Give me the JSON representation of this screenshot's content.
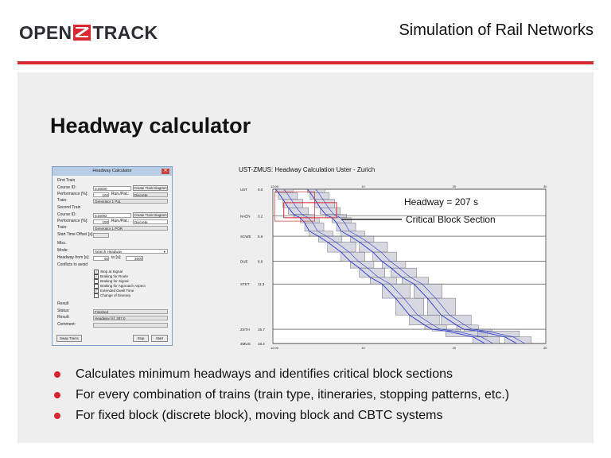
{
  "header": {
    "logo_left": "OPEN",
    "logo_right": "TRACK",
    "title": "Simulation of Rail Networks",
    "accent_color": "#d9282f"
  },
  "slide": {
    "title": "Headway calculator"
  },
  "dialog": {
    "title": "Headway Calculator",
    "first_train_label": "First Train",
    "course_id_label": "Course ID:",
    "course_id_1": "S16000",
    "create_diagram_label": "Create Train Diagram",
    "performance_label": "Performance [%]:",
    "performance_1": "100",
    "run_time_label": "Run./Pat.:",
    "run_time_1": "Discrete",
    "train_label": "Train:",
    "train_1": "Generator 1 Pat.",
    "second_train_label": "Second Train",
    "course_id_2": "S16092",
    "performance_2": "100",
    "run_time_2": "Discrete",
    "train_2": "Generator 1 POR",
    "start_offset_label": "Start Time Offset [s]:",
    "misc_label": "Misc.",
    "mode_label": "Mode:",
    "mode_value": "Search Headway",
    "headway_from_label": "Headway from [s]:",
    "headway_from": "90",
    "headway_to_label": "to [s]:",
    "headway_to": "3600",
    "conflicts_label": "Conflicts to avoid",
    "checkboxes": [
      {
        "label": "Stop at Signal",
        "checked": "✓"
      },
      {
        "label": "Braking for Route",
        "checked": "✓"
      },
      {
        "label": "Braking for Signal",
        "checked": ""
      },
      {
        "label": "Braking for Approach Aspect",
        "checked": ""
      },
      {
        "label": "Extended Dwell Time",
        "checked": "✓"
      },
      {
        "label": "Change of Itinerary",
        "checked": ""
      }
    ],
    "result_label": "Result",
    "status_label": "Status:",
    "status_value": "Finished",
    "result_row_label": "Result:",
    "result_value": "Headway [s]: 207.0",
    "comment_label": "Comment:",
    "swap_button": "Swap Trains",
    "stop_button": "Stop",
    "start_button": "Start"
  },
  "chart_data": {
    "type": "line",
    "title": "UST-ZMUS: Headway Calculation Uster - Zurich",
    "stations": [
      {
        "name": "UST",
        "km": "0.0",
        "pos": 0.0
      },
      {
        "name": "NAEN",
        "km": "3.2",
        "pos": 3.2
      },
      {
        "name": "SCWE",
        "km": "5.6",
        "pos": 5.6
      },
      {
        "name": "DUE",
        "km": "8.6",
        "pos": 8.6
      },
      {
        "name": "STET",
        "km": "11.3",
        "pos": 11.3
      },
      {
        "name": "ZSTH",
        "km": "16.7",
        "pos": 16.7
      },
      {
        "name": "ZMUS",
        "km": "18.4",
        "pos": 18.4
      }
    ],
    "time_ticks_top": [
      "12:00",
      "10",
      "20",
      "30"
    ],
    "time_ticks_bottom": [
      "12:00",
      "10",
      "20",
      "30"
    ],
    "time_tick_values": [
      0,
      10,
      20,
      30
    ],
    "time_range": [
      0,
      30
    ],
    "distance_range": [
      0,
      18.4
    ],
    "headway_annotation": "Headway = 207 s",
    "critical_annotation": "Critical Block Section",
    "headway_s": 207,
    "train_color": "#2a3bd6",
    "block_color": "#b8b8c8",
    "critical_color": "#d9282f",
    "series": [
      {
        "x": [
          0.3,
          0.6,
          1.1,
          1.7,
          2.3,
          3.0,
          3.5,
          4.0,
          5.0,
          6.0,
          7.5,
          8.5,
          9.5,
          10.7,
          12.0,
          13.5,
          15.0,
          16.7,
          17.5,
          19.0,
          22.0,
          23.3
        ],
        "y": [
          0.0,
          0.4,
          1.2,
          2.2,
          3.0,
          3.4,
          4.0,
          5.0,
          5.6,
          6.3,
          7.5,
          8.6,
          9.4,
          10.5,
          11.3,
          13.0,
          15.0,
          16.2,
          16.7,
          16.9,
          17.6,
          18.4
        ]
      },
      {
        "x": [
          3.8,
          4.1,
          4.6,
          5.2,
          5.8,
          6.5,
          7.0,
          7.5,
          8.5,
          9.5,
          11.0,
          12.0,
          13.0,
          14.2,
          15.5,
          17.0,
          18.5,
          20.2,
          21.0,
          22.5,
          25.5,
          26.8
        ],
        "y": [
          0.0,
          0.4,
          1.2,
          2.2,
          3.0,
          3.4,
          4.0,
          5.0,
          5.6,
          6.3,
          7.5,
          8.6,
          9.4,
          10.5,
          11.3,
          13.0,
          15.0,
          16.2,
          16.7,
          16.9,
          17.6,
          18.4
        ]
      }
    ]
  },
  "bullets": [
    "Calculates minimum headways and identifies critical block sections",
    "For every combination of trains (train type, itineraries, stopping patterns, etc.)",
    "For fixed block (discrete block), moving block and CBTC systems"
  ]
}
